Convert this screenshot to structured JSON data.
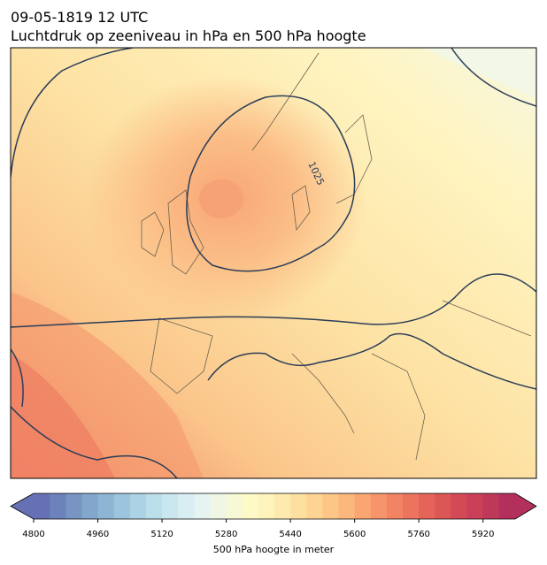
{
  "header": {
    "title_line1": "09-05-1819 12 UTC",
    "title_line2": "Luchtdruk op zeeniveau in hPa en 500 hPa hoogte"
  },
  "map": {
    "contour_labels": [
      "1025"
    ]
  },
  "colorbar": {
    "label": "500 hPa hoogte in meter",
    "range": [
      4800,
      6000
    ],
    "ticks": [
      4800,
      4960,
      5120,
      5280,
      5440,
      5600,
      5760,
      5920
    ],
    "colors": [
      "#6670b4",
      "#6d82bb",
      "#7794c3",
      "#82a6cc",
      "#8db6d5",
      "#9cc4dd",
      "#acd2e5",
      "#bbdeeb",
      "#cae7f0",
      "#d9eef3",
      "#e5f3f1",
      "#eff7e4",
      "#f7f9d6",
      "#fdfac8",
      "#fef3bb",
      "#feeaae",
      "#fde0a0",
      "#fdd493",
      "#fcc687",
      "#fbb77c",
      "#f9a673",
      "#f6956b",
      "#f28464",
      "#ec735e",
      "#e56459",
      "#dc5656",
      "#d34a56",
      "#c94058",
      "#be385a",
      "#b3305c"
    ]
  }
}
